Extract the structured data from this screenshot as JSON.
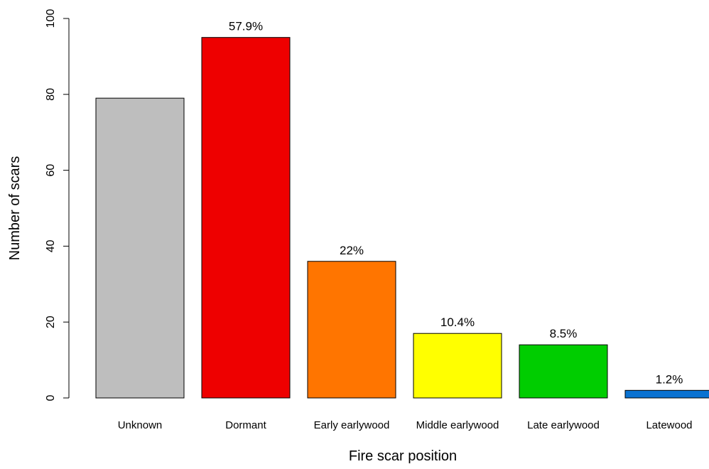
{
  "chart_data": {
    "type": "bar",
    "xlabel": "Fire scar position",
    "ylabel": "Number of scars",
    "ylim": [
      0,
      100
    ],
    "yticks": [
      "0",
      "20",
      "40",
      "60",
      "80",
      "100"
    ],
    "grid": false,
    "categories": [
      "Unknown",
      "Dormant",
      "Early earlywood",
      "Middle earlywood",
      "Late earlywood",
      "Latewood"
    ],
    "values": [
      79,
      95,
      36,
      17,
      14,
      2
    ],
    "data_labels": [
      "",
      "57.9%",
      "22%",
      "10.4%",
      "8.5%",
      "1.2%"
    ],
    "colors": [
      "#bebebe",
      "#ee0000",
      "#ff7500",
      "#ffff00",
      "#00cd00",
      "#0a72d1"
    ]
  }
}
